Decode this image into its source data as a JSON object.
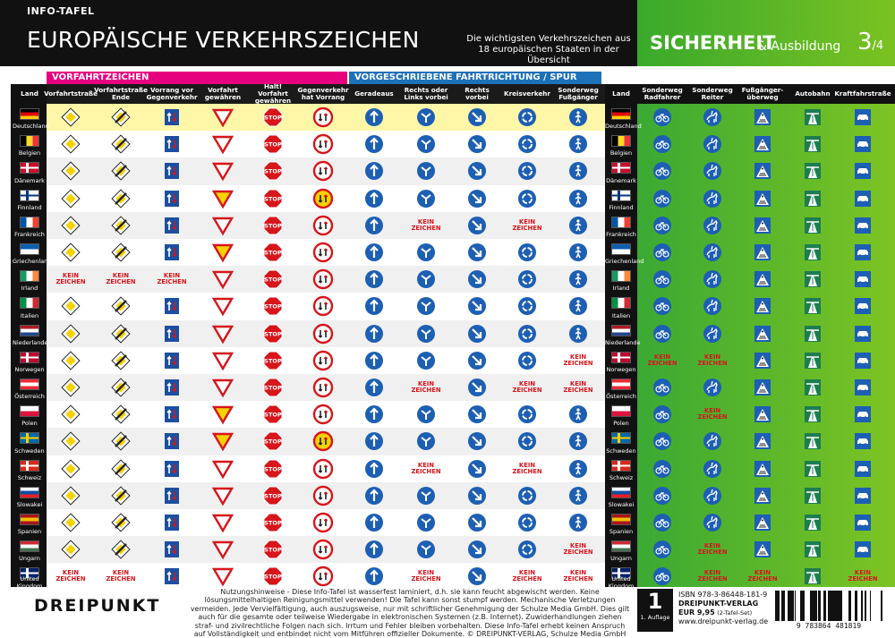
{
  "header": {
    "info": "INFO-TAFEL",
    "title": "EUROPÄISCHE VERKEHRSZEICHEN",
    "subtitle": "Die wichtigsten Verkehrszeichen aus 18 europäischen Staaten in der Übersicht",
    "section": "SICHERHEIT",
    "section_sub": "& Ausbildung",
    "page": "3",
    "page_total": "/4"
  },
  "groups": {
    "vorfahrt": "VORFAHRTZEICHEN",
    "richtung": "VORGESCHRIEBENE FAHRTRICHTUNG / SPUR (Sonderweg)"
  },
  "columns": [
    "Land",
    "Vorfahrtstraße",
    "Vorfahrtstraße Ende",
    "Vorrang vor Gegenverkehr",
    "Vorfahrt gewähren",
    "Halt! Vorfahrt gewähren",
    "Gegenverkehr hat Vorrang",
    "Geradeaus",
    "Rechts oder Links vorbei",
    "Rechts vorbei",
    "Kreisverkehr",
    "Sonderweg Fußgänger",
    "Land",
    "Sonderweg Radfahrer",
    "Sonderweg Reiter",
    "Fußgänger-überweg",
    "Autobahn",
    "Kraftfahrstraße"
  ],
  "kein": [
    "KEIN",
    "ZEICHEN"
  ],
  "stop": "STOP",
  "countries": [
    {
      "name": "Deutschland",
      "flag": [
        "#000",
        "#dd0000",
        "#ffce00"
      ],
      "dir": "h",
      "kein": []
    },
    {
      "name": "Belgien",
      "flag": [
        "#000",
        "#fdda24",
        "#ef3340"
      ],
      "dir": "v",
      "kein": []
    },
    {
      "name": "Dänemark",
      "flag": [
        "#c8102e",
        "#fff"
      ],
      "dir": "cross",
      "kein": []
    },
    {
      "name": "Finnland",
      "flag": [
        "#fff",
        "#003580"
      ],
      "dir": "cross",
      "kein": []
    },
    {
      "name": "Frankreich",
      "flag": [
        "#0055a4",
        "#fff",
        "#ef4135"
      ],
      "dir": "v",
      "kein": [
        8,
        10
      ]
    },
    {
      "name": "Griechenland",
      "flag": [
        "#0d5eaf",
        "#fff"
      ],
      "dir": "h",
      "kein": []
    },
    {
      "name": "Irland",
      "flag": [
        "#169b62",
        "#fff",
        "#ff883e"
      ],
      "dir": "v",
      "kein": [
        1,
        2,
        3
      ]
    },
    {
      "name": "Italien",
      "flag": [
        "#009246",
        "#fff",
        "#ce2b37"
      ],
      "dir": "v",
      "kein": []
    },
    {
      "name": "Niederlande",
      "flag": [
        "#ae1c28",
        "#fff",
        "#21468b"
      ],
      "dir": "h",
      "kein": []
    },
    {
      "name": "Norwegen",
      "flag": [
        "#ba0c2f",
        "#fff"
      ],
      "dir": "cross",
      "kein": [
        11,
        13,
        14
      ]
    },
    {
      "name": "Österreich",
      "flag": [
        "#ed2939",
        "#fff",
        "#ed2939"
      ],
      "dir": "h",
      "kein": [
        8,
        10,
        11
      ]
    },
    {
      "name": "Polen",
      "flag": [
        "#fff",
        "#dc143c"
      ],
      "dir": "h",
      "kein": [
        14
      ]
    },
    {
      "name": "Schweden",
      "flag": [
        "#006aa7",
        "#fecc00"
      ],
      "dir": "cross",
      "kein": []
    },
    {
      "name": "Schweiz",
      "flag": [
        "#d52b1e",
        "#fff"
      ],
      "dir": "cross",
      "kein": [
        8,
        10
      ]
    },
    {
      "name": "Slowakei",
      "flag": [
        "#fff",
        "#0b4ea2",
        "#ee1c25"
      ],
      "dir": "h",
      "kein": []
    },
    {
      "name": "Spanien",
      "flag": [
        "#aa151b",
        "#f1bf00",
        "#aa151b"
      ],
      "dir": "h",
      "kein": []
    },
    {
      "name": "Ungarn",
      "flag": [
        "#ce2939",
        "#fff",
        "#477050"
      ],
      "dir": "h",
      "kein": [
        11,
        14
      ]
    },
    {
      "name": "United Kingdom",
      "flag": [
        "#012169",
        "#fff"
      ],
      "dir": "cross",
      "kein": [
        1,
        2,
        8,
        10,
        11,
        14,
        15,
        17
      ]
    }
  ],
  "footer": {
    "logo": "DREIPUNKT",
    "notes": "Nutzungshinweise - Diese Info-Tafel ist wasserfest laminiert, d.h. sie kann feucht abgewischt werden. Keine lösungsmittelhaltigen Reinigungsmittel verwenden! Die Tafel kann sonst stumpf werden. Mechanische Verletzungen vermeiden. Jede Vervielfältigung, auch auszugsweise, nur mit schriftlicher Genehmigung der Schulze Media GmbH. Dies gilt auch für die gesamte oder teilweise Wiedergabe in elektronischen Systemen (z.B. Internet). Zuwiderhandlungen ziehen straf- und zivilrechtliche Folgen nach sich. Irrtum und Fehler bleiben vorbehalten. Diese Info-Tafel erhebt keinen Anspruch auf Vollständigkeit und entbindet nicht vom Mitführen offizieller Dokumente. © DREIPUNKT-VERLAG, Schulze Media GmbH",
    "auflage_num": "1",
    "auflage": "1. Auflage",
    "isbn": "ISBN 978-3-86448-181-9",
    "verlag": "DREIPUNKT-VERLAG",
    "price": "EUR 9,95",
    "set": "(2-Tafel-Set)",
    "web": "www.dreipunkt-verlag.de",
    "barcode": "9 783864 481819"
  }
}
